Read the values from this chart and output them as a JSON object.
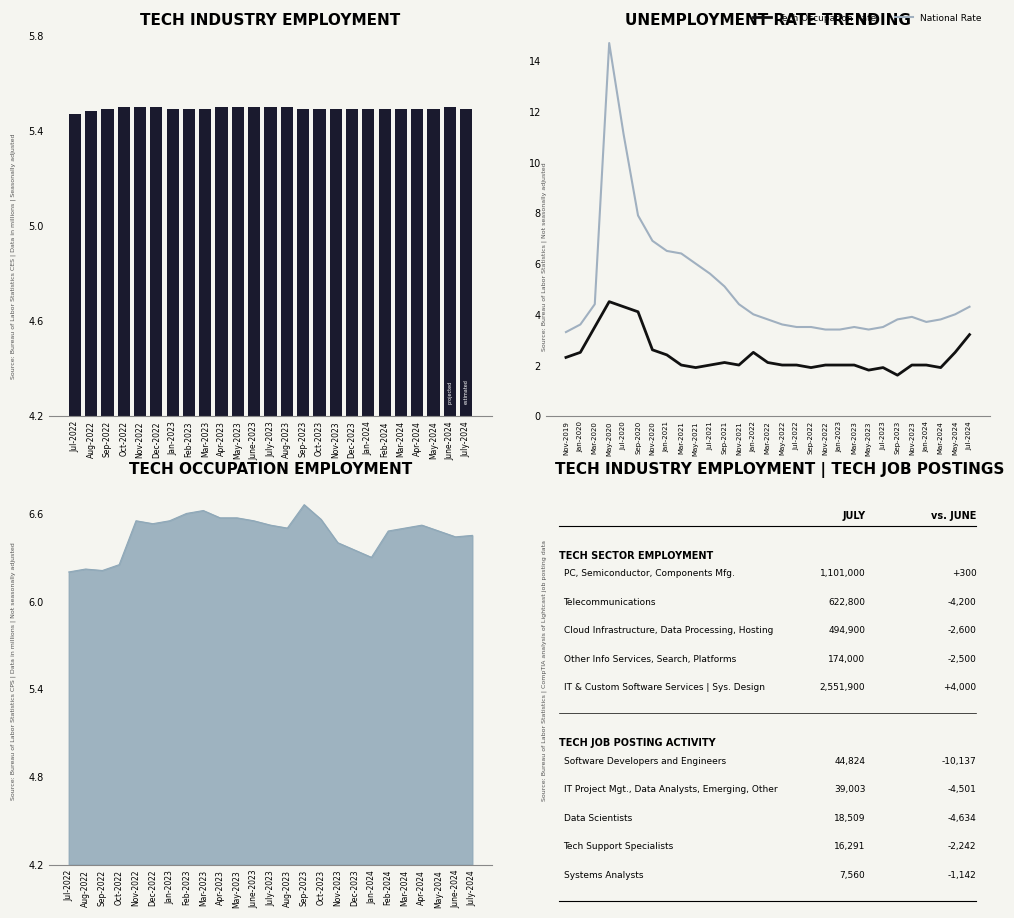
{
  "background_color": "#f5f5f0",
  "title_fontsize": 11,
  "bar_chart": {
    "title": "TECH INDUSTRY EMPLOYMENT",
    "ylabel": "Source: Bureau of Labor Statistics CES | Data in millions | Seasonally adjusted",
    "ylim": [
      4.2,
      5.8
    ],
    "yticks": [
      4.2,
      4.6,
      5.0,
      5.4,
      5.8
    ],
    "bar_color": "#1a1a2e",
    "labels": [
      "Jul-2022",
      "Aug-2022",
      "Sep-2022",
      "Oct-2022",
      "Nov-2022",
      "Dec-2022",
      "Jan-2023",
      "Feb-2023",
      "Mar-2023",
      "Apr-2023",
      "May-2023",
      "June-2023",
      "July-2023",
      "Aug-2023",
      "Sep-2023",
      "Oct-2023",
      "Nov-2023",
      "Dec-2023",
      "Jan-2024",
      "Feb-2024",
      "Mar-2024",
      "Apr-2024",
      "May-2024",
      "June-2024",
      "July-2024"
    ],
    "values": [
      5.47,
      5.48,
      5.49,
      5.5,
      5.5,
      5.5,
      5.49,
      5.49,
      5.49,
      5.5,
      5.5,
      5.5,
      5.5,
      5.5,
      5.49,
      5.49,
      5.49,
      5.49,
      5.49,
      5.49,
      5.49,
      5.49,
      5.49,
      5.5,
      5.49
    ],
    "annotation_label1": "projected",
    "annotation_label2": "estimated"
  },
  "line_chart": {
    "title": "UNEMPLOYMENT RATE TRENDING",
    "ylabel": "Source: Bureau of Labor Statistics | Not seasonally adjusted",
    "ylim": [
      0,
      15
    ],
    "yticks": [
      0.0,
      2.0,
      4.0,
      6.0,
      8.0,
      10.0,
      12.0,
      14.0
    ],
    "legend1": "Tech Occupation Rate",
    "legend2": "National Rate",
    "tech_color": "#111111",
    "national_color": "#a0b0c0",
    "labels": [
      "Nov-2019",
      "Jan-2020",
      "Mar-2020",
      "May-2020",
      "Jul-2020",
      "Sep-2020",
      "Nov-2020",
      "Jan-2021",
      "Mar-2021",
      "May-2021",
      "Jul-2021",
      "Sep-2021",
      "Nov-2021",
      "Jan-2022",
      "Mar-2022",
      "May-2022",
      "Jul-2022",
      "Sep-2022",
      "Nov-2022",
      "Jan-2023",
      "Mar-2023",
      "May-2023",
      "Jul-2023",
      "Sep-2023",
      "Nov-2023",
      "Jan-2024",
      "Mar-2024",
      "May-2024",
      "Jul-2024"
    ],
    "tech_values": [
      2.3,
      2.5,
      3.5,
      4.5,
      4.3,
      4.1,
      2.6,
      2.4,
      2.0,
      1.9,
      2.0,
      2.1,
      2.0,
      2.5,
      2.1,
      2.0,
      2.0,
      1.9,
      2.0,
      2.0,
      2.0,
      1.8,
      1.9,
      1.6,
      2.0,
      2.0,
      1.9,
      2.5,
      3.2
    ],
    "national_values": [
      3.3,
      3.6,
      4.4,
      14.7,
      11.1,
      7.9,
      6.9,
      6.5,
      6.4,
      6.0,
      5.6,
      5.1,
      4.4,
      4.0,
      3.8,
      3.6,
      3.5,
      3.5,
      3.4,
      3.4,
      3.5,
      3.4,
      3.5,
      3.8,
      3.9,
      3.7,
      3.8,
      4.0,
      4.3
    ]
  },
  "area_chart": {
    "title": "TECH OCCUPATION EMPLOYMENT",
    "ylabel": "Source: Bureau of Labor Statistics CPS | Data in millions | Not seasonally adjusted",
    "ylim": [
      4.2,
      6.8
    ],
    "yticks": [
      4.2,
      4.8,
      5.4,
      6.0,
      6.6
    ],
    "area_color": "#8fa8b8",
    "area_alpha": 0.85,
    "labels": [
      "Jul-2022",
      "Aug-2022",
      "Sep-2022",
      "Oct-2022",
      "Nov-2022",
      "Dec-2022",
      "Jan-2023",
      "Feb-2023",
      "Mar-2023",
      "Apr-2023",
      "May-2023",
      "June-2023",
      "July-2023",
      "Aug-2023",
      "Sep-2023",
      "Oct-2023",
      "Nov-2023",
      "Dec-2023",
      "Jan-2024",
      "Feb-2024",
      "Mar-2024",
      "Apr-2024",
      "May-2024",
      "June-2024",
      "July-2024"
    ],
    "values": [
      6.2,
      6.22,
      6.21,
      6.25,
      6.55,
      6.53,
      6.55,
      6.6,
      6.62,
      6.57,
      6.57,
      6.55,
      6.52,
      6.5,
      6.66,
      6.56,
      6.4,
      6.35,
      6.3,
      6.48,
      6.5,
      6.52,
      6.48,
      6.44,
      6.45
    ]
  },
  "table": {
    "title": "TECH INDUSTRY EMPLOYMENT | TECH JOB POSTINGS",
    "col_headers": [
      "",
      "JULY",
      "vs. JUNE"
    ],
    "section1_header": "TECH SECTOR EMPLOYMENT",
    "section1_rows": [
      [
        "PC, Semiconductor, Components Mfg.",
        "1,101,000",
        "+300"
      ],
      [
        "Telecommunications",
        "622,800",
        "-4,200"
      ],
      [
        "Cloud Infrastructure, Data Processing, Hosting",
        "494,900",
        "-2,600"
      ],
      [
        "Other Info Services, Search, Platforms",
        "174,000",
        "-2,500"
      ],
      [
        "IT & Custom Software Services | Sys. Design",
        "2,551,900",
        "+4,000"
      ]
    ],
    "section2_header": "TECH JOB POSTING ACTIVITY",
    "section2_rows": [
      [
        "Software Developers and Engineers",
        "44,824",
        "-10,137"
      ],
      [
        "IT Project Mgt., Data Analysts, Emerging, Other",
        "39,003",
        "-4,501"
      ],
      [
        "Data Scientists",
        "18,509",
        "-4,634"
      ],
      [
        "Tech Support Specialists",
        "16,291",
        "-2,242"
      ],
      [
        "Systems Analysts",
        "7,560",
        "-1,142"
      ]
    ],
    "source_note": "Source: Bureau of Labor Statistics | CompTIA analysis of Lightcast job posting data"
  }
}
